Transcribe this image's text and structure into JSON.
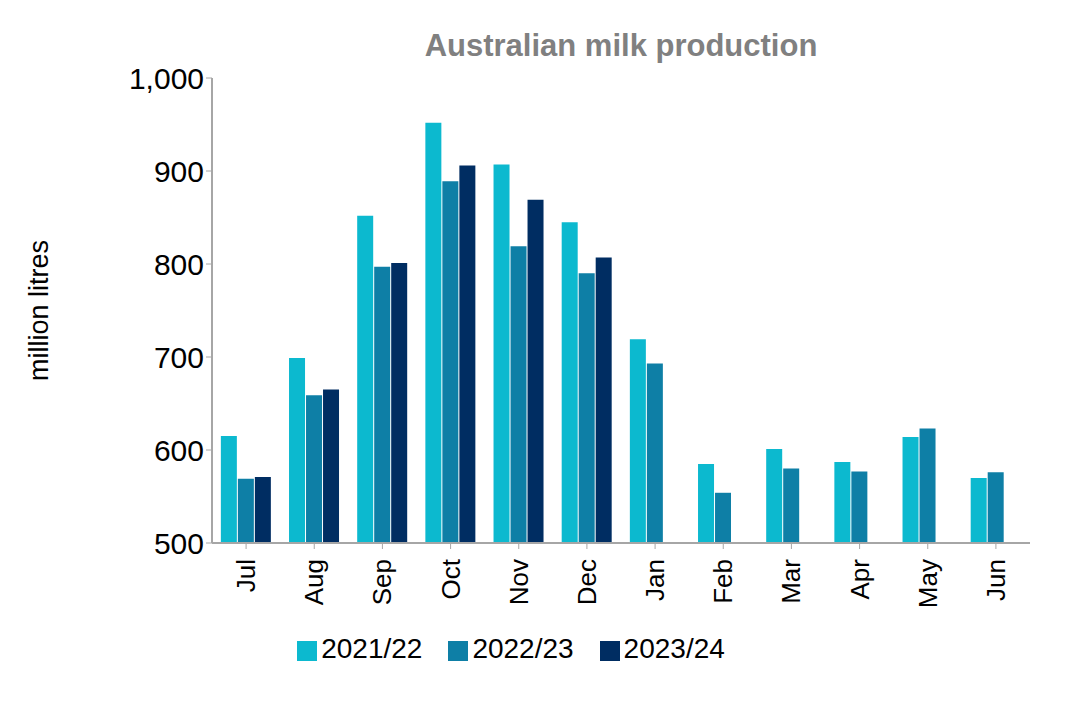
{
  "chart_data": {
    "type": "bar",
    "title": "Australian milk production",
    "y_label": "million litres",
    "categories": [
      "Jul",
      "Aug",
      "Sep",
      "Oct",
      "Nov",
      "Dec",
      "Jan",
      "Feb",
      "Mar",
      "Apr",
      "May",
      "Jun"
    ],
    "series": [
      {
        "name": "2021/22",
        "color": "#0cb9cf",
        "values": [
          615,
          699,
          852,
          952,
          907,
          845,
          719,
          585,
          601,
          587,
          614,
          570
        ]
      },
      {
        "name": "2022/23",
        "color": "#0e7fa6",
        "values": [
          569,
          659,
          797,
          889,
          819,
          790,
          693,
          554,
          580,
          577,
          623,
          576
        ]
      },
      {
        "name": "2023/24",
        "color": "#002d62",
        "values": [
          571,
          665,
          801,
          906,
          869,
          807,
          null,
          null,
          null,
          null,
          null,
          null
        ]
      }
    ],
    "ylim": [
      500,
      1000
    ],
    "yticks": [
      500,
      600,
      700,
      800,
      900,
      {
        "value": 1000,
        "label": "1,000"
      }
    ],
    "grid": false,
    "legend": "bottom"
  }
}
